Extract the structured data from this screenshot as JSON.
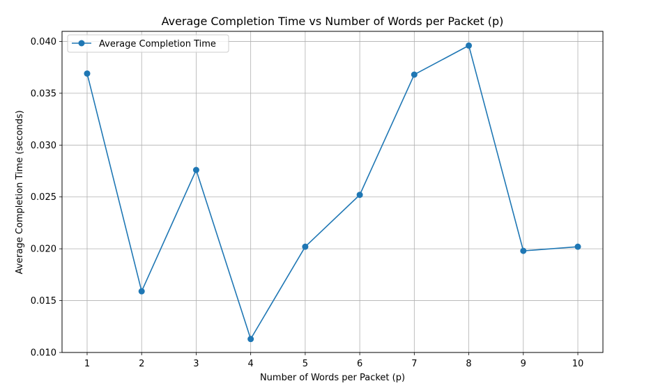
{
  "chart_data": {
    "type": "line",
    "title": "Average Completion Time vs Number of Words per Packet (p)",
    "xlabel": "Number of Words per Packet (p)",
    "ylabel": "Average Completion Time (seconds)",
    "x": [
      1,
      2,
      3,
      4,
      5,
      6,
      7,
      8,
      9,
      10
    ],
    "series": [
      {
        "name": "Average Completion Time",
        "color": "#1f77b4",
        "marker": "circle",
        "values": [
          0.0369,
          0.0159,
          0.0276,
          0.0113,
          0.0202,
          0.0252,
          0.0368,
          0.0396,
          0.0198,
          0.0202
        ]
      }
    ],
    "xticks": [
      "1",
      "2",
      "3",
      "4",
      "5",
      "6",
      "7",
      "8",
      "9",
      "10"
    ],
    "yticks": [
      "0.010",
      "0.015",
      "0.020",
      "0.025",
      "0.030",
      "0.035",
      "0.040"
    ],
    "ytick_values": [
      0.01,
      0.015,
      0.02,
      0.025,
      0.03,
      0.035,
      0.04
    ],
    "xlim": [
      0.54,
      10.46
    ],
    "ylim": [
      0.01,
      0.04097
    ],
    "grid": true,
    "legend_position": "upper-left"
  }
}
